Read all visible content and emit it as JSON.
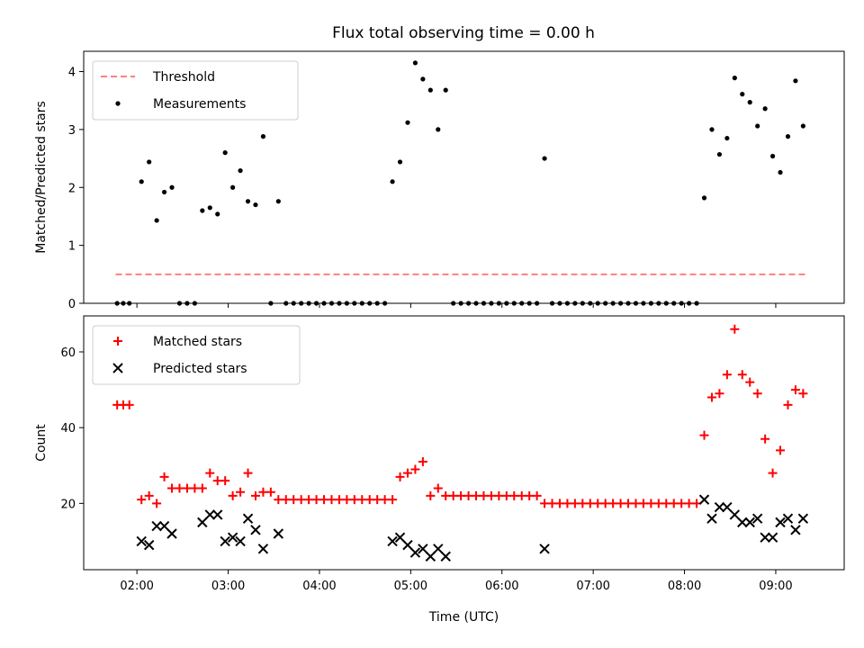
{
  "title": "Flux total observing time = 0.00 h",
  "chart_data": [
    {
      "type": "scatter",
      "ylabel": "Matched/Predicted stars",
      "xlabel": "",
      "xlim": [
        "01:25",
        "09:45"
      ],
      "ylim": [
        0,
        4.35
      ],
      "yticks": [
        0,
        1,
        2,
        3,
        4
      ],
      "xticks": [
        "02:00",
        "03:00",
        "04:00",
        "05:00",
        "06:00",
        "07:00",
        "08:00",
        "09:00"
      ],
      "show_xtick_labels": false,
      "legend_position": "upper left",
      "series": [
        {
          "name": "Threshold",
          "kind": "dashed-line",
          "color": "#ff7f7f",
          "x": [
            "01:46",
            "09:20"
          ],
          "y": [
            0.5,
            0.5
          ]
        },
        {
          "name": "Measurements",
          "kind": "dot",
          "color": "#000000",
          "points": [
            [
              "01:47",
              0
            ],
            [
              "01:51",
              0
            ],
            [
              "01:55",
              0
            ],
            [
              "02:03",
              2.1
            ],
            [
              "02:08",
              2.44
            ],
            [
              "02:13",
              1.43
            ],
            [
              "02:18",
              1.92
            ],
            [
              "02:23",
              2.0
            ],
            [
              "02:28",
              0
            ],
            [
              "02:33",
              0
            ],
            [
              "02:38",
              0
            ],
            [
              "02:43",
              1.6
            ],
            [
              "02:48",
              1.65
            ],
            [
              "02:53",
              1.54
            ],
            [
              "02:58",
              2.6
            ],
            [
              "03:03",
              2.0
            ],
            [
              "03:08",
              2.29
            ],
            [
              "03:13",
              1.76
            ],
            [
              "03:18",
              1.7
            ],
            [
              "03:23",
              2.88
            ],
            [
              "03:28",
              0
            ],
            [
              "03:33",
              1.76
            ],
            [
              "03:38",
              0
            ],
            [
              "03:43",
              0
            ],
            [
              "03:48",
              0
            ],
            [
              "03:53",
              0
            ],
            [
              "03:58",
              0
            ],
            [
              "04:03",
              0
            ],
            [
              "04:08",
              0
            ],
            [
              "04:13",
              0
            ],
            [
              "04:18",
              0
            ],
            [
              "04:23",
              0
            ],
            [
              "04:28",
              0
            ],
            [
              "04:33",
              0
            ],
            [
              "04:38",
              0
            ],
            [
              "04:43",
              0
            ],
            [
              "04:48",
              2.1
            ],
            [
              "04:53",
              2.44
            ],
            [
              "04:58",
              3.12
            ],
            [
              "05:03",
              4.15
            ],
            [
              "05:08",
              3.87
            ],
            [
              "05:13",
              3.68
            ],
            [
              "05:18",
              3.0
            ],
            [
              "05:23",
              3.68
            ],
            [
              "05:28",
              0
            ],
            [
              "05:33",
              0
            ],
            [
              "05:38",
              0
            ],
            [
              "05:43",
              0
            ],
            [
              "05:48",
              0
            ],
            [
              "05:53",
              0
            ],
            [
              "05:58",
              0
            ],
            [
              "06:03",
              0
            ],
            [
              "06:08",
              0
            ],
            [
              "06:13",
              0
            ],
            [
              "06:18",
              0
            ],
            [
              "06:23",
              0
            ],
            [
              "06:28",
              2.5
            ],
            [
              "06:33",
              0
            ],
            [
              "06:38",
              0
            ],
            [
              "06:43",
              0
            ],
            [
              "06:48",
              0
            ],
            [
              "06:53",
              0
            ],
            [
              "06:58",
              0
            ],
            [
              "07:03",
              0
            ],
            [
              "07:08",
              0
            ],
            [
              "07:13",
              0
            ],
            [
              "07:18",
              0
            ],
            [
              "07:23",
              0
            ],
            [
              "07:28",
              0
            ],
            [
              "07:33",
              0
            ],
            [
              "07:38",
              0
            ],
            [
              "07:43",
              0
            ],
            [
              "07:48",
              0
            ],
            [
              "07:53",
              0
            ],
            [
              "07:58",
              0
            ],
            [
              "08:03",
              0
            ],
            [
              "08:08",
              0
            ],
            [
              "08:13",
              1.82
            ],
            [
              "08:18",
              3.0
            ],
            [
              "08:23",
              2.57
            ],
            [
              "08:28",
              2.85
            ],
            [
              "08:33",
              3.89
            ],
            [
              "08:38",
              3.61
            ],
            [
              "08:43",
              3.47
            ],
            [
              "08:48",
              3.06
            ],
            [
              "08:53",
              3.36
            ],
            [
              "08:58",
              2.54
            ],
            [
              "09:03",
              2.26
            ],
            [
              "09:08",
              2.88
            ],
            [
              "09:13",
              3.84
            ],
            [
              "09:18",
              3.06
            ]
          ]
        }
      ]
    },
    {
      "type": "scatter",
      "ylabel": "Count",
      "xlabel": "Time (UTC)",
      "xlim": [
        "01:25",
        "09:45"
      ],
      "ylim": [
        2.5,
        69.5
      ],
      "yticks": [
        20,
        40,
        60
      ],
      "xticks": [
        "02:00",
        "03:00",
        "04:00",
        "05:00",
        "06:00",
        "07:00",
        "08:00",
        "09:00"
      ],
      "show_xtick_labels": true,
      "legend_position": "upper left",
      "series": [
        {
          "name": "Matched stars",
          "kind": "plus",
          "color": "#ff0000",
          "points": [
            [
              "01:47",
              46
            ],
            [
              "01:51",
              46
            ],
            [
              "01:55",
              46
            ],
            [
              "02:03",
              21
            ],
            [
              "02:08",
              22
            ],
            [
              "02:13",
              20
            ],
            [
              "02:18",
              27
            ],
            [
              "02:23",
              24
            ],
            [
              "02:28",
              24
            ],
            [
              "02:33",
              24
            ],
            [
              "02:38",
              24
            ],
            [
              "02:43",
              24
            ],
            [
              "02:48",
              28
            ],
            [
              "02:53",
              26
            ],
            [
              "02:58",
              26
            ],
            [
              "03:03",
              22
            ],
            [
              "03:08",
              23
            ],
            [
              "03:13",
              28
            ],
            [
              "03:18",
              22
            ],
            [
              "03:23",
              23
            ],
            [
              "03:28",
              23
            ],
            [
              "03:33",
              21
            ],
            [
              "03:38",
              21
            ],
            [
              "03:43",
              21
            ],
            [
              "03:48",
              21
            ],
            [
              "03:53",
              21
            ],
            [
              "03:58",
              21
            ],
            [
              "04:03",
              21
            ],
            [
              "04:08",
              21
            ],
            [
              "04:13",
              21
            ],
            [
              "04:18",
              21
            ],
            [
              "04:23",
              21
            ],
            [
              "04:28",
              21
            ],
            [
              "04:33",
              21
            ],
            [
              "04:38",
              21
            ],
            [
              "04:43",
              21
            ],
            [
              "04:48",
              21
            ],
            [
              "04:53",
              27
            ],
            [
              "04:58",
              28
            ],
            [
              "05:03",
              29
            ],
            [
              "05:08",
              31
            ],
            [
              "05:13",
              22
            ],
            [
              "05:18",
              24
            ],
            [
              "05:23",
              22
            ],
            [
              "05:28",
              22
            ],
            [
              "05:33",
              22
            ],
            [
              "05:38",
              22
            ],
            [
              "05:43",
              22
            ],
            [
              "05:48",
              22
            ],
            [
              "05:53",
              22
            ],
            [
              "05:58",
              22
            ],
            [
              "06:03",
              22
            ],
            [
              "06:08",
              22
            ],
            [
              "06:13",
              22
            ],
            [
              "06:18",
              22
            ],
            [
              "06:23",
              22
            ],
            [
              "06:28",
              20
            ],
            [
              "06:33",
              20
            ],
            [
              "06:38",
              20
            ],
            [
              "06:43",
              20
            ],
            [
              "06:48",
              20
            ],
            [
              "06:53",
              20
            ],
            [
              "06:58",
              20
            ],
            [
              "07:03",
              20
            ],
            [
              "07:08",
              20
            ],
            [
              "07:13",
              20
            ],
            [
              "07:18",
              20
            ],
            [
              "07:23",
              20
            ],
            [
              "07:28",
              20
            ],
            [
              "07:33",
              20
            ],
            [
              "07:38",
              20
            ],
            [
              "07:43",
              20
            ],
            [
              "07:48",
              20
            ],
            [
              "07:53",
              20
            ],
            [
              "07:58",
              20
            ],
            [
              "08:03",
              20
            ],
            [
              "08:08",
              20
            ],
            [
              "08:13",
              38
            ],
            [
              "08:18",
              48
            ],
            [
              "08:23",
              49
            ],
            [
              "08:28",
              54
            ],
            [
              "08:33",
              66
            ],
            [
              "08:38",
              54
            ],
            [
              "08:43",
              52
            ],
            [
              "08:48",
              49
            ],
            [
              "08:53",
              37
            ],
            [
              "08:58",
              28
            ],
            [
              "09:03",
              34
            ],
            [
              "09:08",
              46
            ],
            [
              "09:13",
              50
            ],
            [
              "09:18",
              49
            ]
          ]
        },
        {
          "name": "Predicted stars",
          "kind": "x",
          "color": "#000000",
          "points": [
            [
              "02:03",
              10
            ],
            [
              "02:08",
              9
            ],
            [
              "02:13",
              14
            ],
            [
              "02:18",
              14
            ],
            [
              "02:23",
              12
            ],
            [
              "02:43",
              15
            ],
            [
              "02:48",
              17
            ],
            [
              "02:53",
              17
            ],
            [
              "02:58",
              10
            ],
            [
              "03:03",
              11
            ],
            [
              "03:08",
              10
            ],
            [
              "03:13",
              16
            ],
            [
              "03:18",
              13
            ],
            [
              "03:23",
              8
            ],
            [
              "03:33",
              12
            ],
            [
              "04:48",
              10
            ],
            [
              "04:53",
              11
            ],
            [
              "04:58",
              9
            ],
            [
              "05:03",
              7
            ],
            [
              "05:08",
              8
            ],
            [
              "05:13",
              6
            ],
            [
              "05:18",
              8
            ],
            [
              "05:23",
              6
            ],
            [
              "06:28",
              8
            ],
            [
              "08:13",
              21
            ],
            [
              "08:18",
              16
            ],
            [
              "08:23",
              19
            ],
            [
              "08:28",
              19
            ],
            [
              "08:33",
              17
            ],
            [
              "08:38",
              15
            ],
            [
              "08:43",
              15
            ],
            [
              "08:48",
              16
            ],
            [
              "08:53",
              11
            ],
            [
              "08:58",
              11
            ],
            [
              "09:03",
              15
            ],
            [
              "09:08",
              16
            ],
            [
              "09:13",
              13
            ],
            [
              "09:18",
              16
            ]
          ]
        }
      ]
    }
  ]
}
